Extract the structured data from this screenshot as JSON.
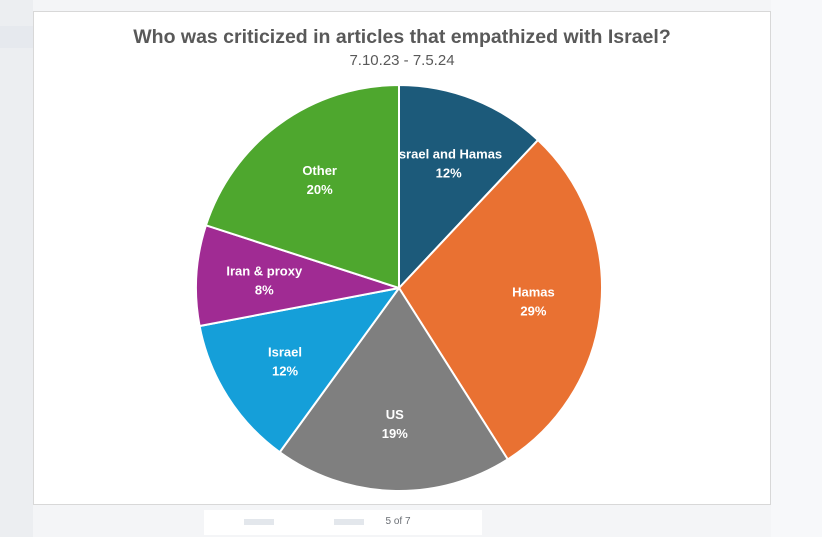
{
  "page": {
    "indicator": "5 of 7"
  },
  "chart_data": {
    "type": "pie",
    "title": "Who was criticized in articles that empathized with Israel?",
    "subtitle": "7.10.23 - 7.5.24",
    "slices": [
      {
        "label": "Israel and Hamas",
        "value": 12,
        "value_label": "12%",
        "color": "#1c5a7a"
      },
      {
        "label": "Hamas",
        "value": 29,
        "value_label": "29%",
        "color": "#e97132"
      },
      {
        "label": "US",
        "value": 19,
        "value_label": "19%",
        "color": "#7f7f7f"
      },
      {
        "label": "Israel",
        "value": 12,
        "value_label": "12%",
        "color": "#159fd9"
      },
      {
        "label": "Iran & proxy",
        "value": 8,
        "value_label": "8%",
        "color": "#a02b93"
      },
      {
        "label": "Other",
        "value": 20,
        "value_label": "20%",
        "color": "#4ea72e"
      }
    ],
    "start_angle_deg": 0,
    "direction": "clockwise",
    "legend": "none",
    "data_labels": "inside"
  }
}
